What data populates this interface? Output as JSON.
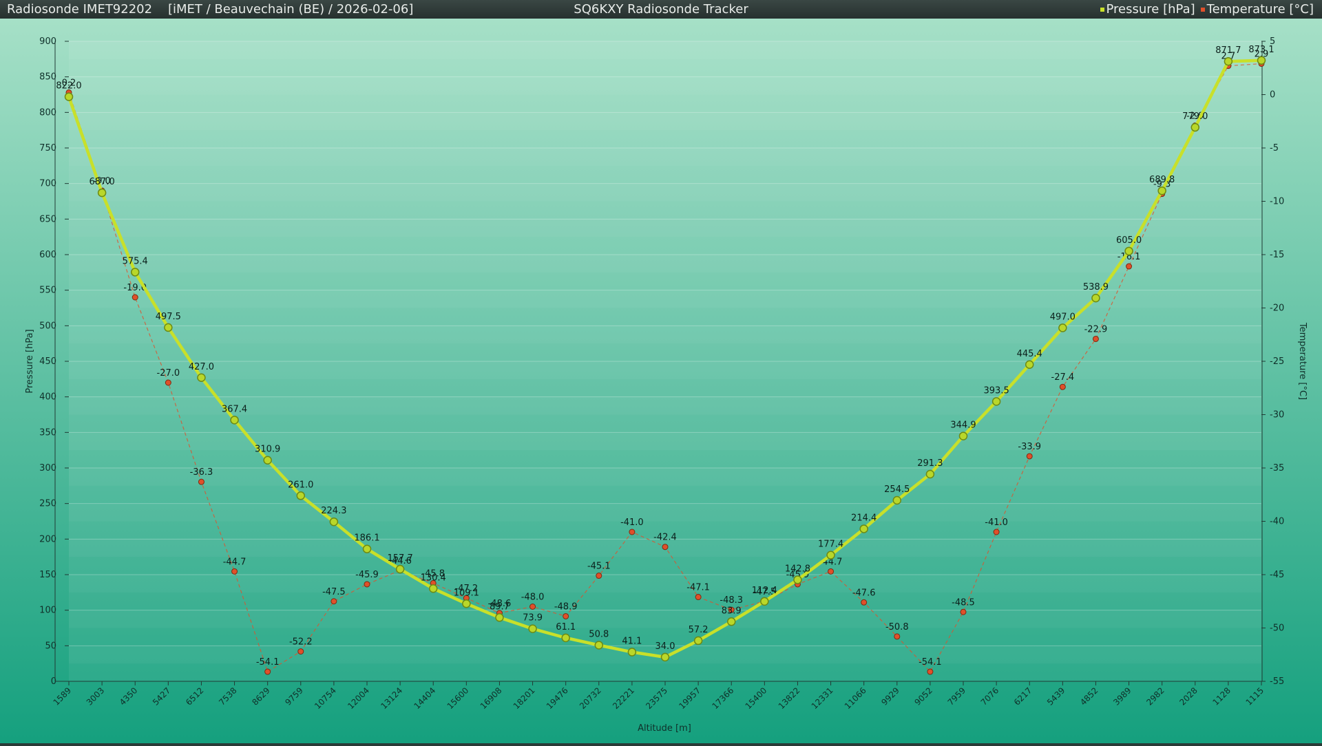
{
  "window": {
    "title_left": "Radiosonde IMET92202    [iMET / Beauvechain (BE) / 2026-02-06]",
    "title_center": "SQ6KXY Radiosonde Tracker"
  },
  "colors": {
    "pressure": "#c8e02a",
    "temperature": "#e0502a",
    "background_top": "#a6e0c7",
    "background_bottom": "#15a07e"
  },
  "chart_data": {
    "type": "line",
    "xlabel": "Altitude [m]",
    "ylabel": "Pressure [hPa]",
    "y2label": "Temperature [°C]",
    "ylim": [
      0,
      900
    ],
    "y2lim": [
      -55,
      5
    ],
    "yticks": [
      0,
      50,
      100,
      150,
      200,
      250,
      300,
      350,
      400,
      450,
      500,
      550,
      600,
      650,
      700,
      750,
      800,
      850,
      900
    ],
    "y2ticks": [
      -55,
      -50,
      -45,
      -40,
      -35,
      -30,
      -25,
      -20,
      -15,
      -10,
      -5,
      0,
      5
    ],
    "legend": "top-right",
    "x": [
      "1589",
      "3003",
      "4350",
      "5427",
      "6512",
      "7538",
      "8629",
      "9759",
      "10754",
      "12004",
      "13124",
      "14404",
      "15600",
      "16908",
      "18201",
      "19476",
      "20732",
      "22221",
      "23575",
      "19957",
      "17366",
      "15400",
      "13822",
      "12331",
      "11066",
      "9929",
      "9052",
      "7959",
      "7076",
      "6217",
      "5439",
      "4852",
      "3989",
      "2982",
      "2028",
      "1128",
      "1115"
    ],
    "series": [
      {
        "name": "Pressure [hPa]",
        "axis": "left",
        "values": [
          822.0,
          687.0,
          575.4,
          497.5,
          427.0,
          367.4,
          310.9,
          261.0,
          224.3,
          186.1,
          157.7,
          130.4,
          109.1,
          89.7,
          73.9,
          61.1,
          50.8,
          41.1,
          34.0,
          57.2,
          83.9,
          112.4,
          142.8,
          177.4,
          214.4,
          254.5,
          291.3,
          344.9,
          393.5,
          445.4,
          497.0,
          538.9,
          605.0,
          689.8,
          779.0,
          871.7,
          873.1
        ]
      },
      {
        "name": "Temperature [°C]",
        "axis": "right",
        "values": [
          0.2,
          -9.0,
          -19.0,
          -27.0,
          -36.3,
          -44.7,
          -54.1,
          -52.2,
          -47.5,
          -45.9,
          -44.6,
          -45.8,
          -47.2,
          -48.6,
          -48.0,
          -48.9,
          -45.1,
          -41.0,
          -42.4,
          -47.1,
          -48.3,
          -47.5,
          -45.9,
          -44.7,
          -47.6,
          -50.8,
          -54.1,
          -48.5,
          -41.0,
          -33.9,
          -27.4,
          -22.9,
          -16.1,
          -9.3,
          -2.9,
          2.7,
          2.9
        ]
      }
    ]
  }
}
